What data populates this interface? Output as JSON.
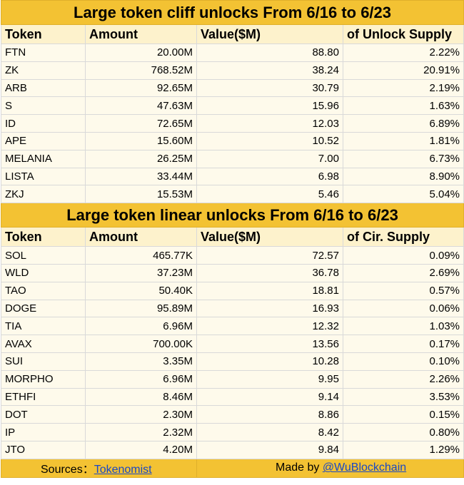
{
  "cliff": {
    "title": "Large token cliff unlocks From  6/16 to 6/23",
    "headers": [
      "Token",
      "Amount",
      "Value($M)",
      "of Unlock Supply"
    ],
    "rows": [
      [
        "FTN",
        "20.00M",
        "88.80",
        "2.22%"
      ],
      [
        "ZK",
        "768.52M",
        "38.24",
        "20.91%"
      ],
      [
        "ARB",
        "92.65M",
        "30.79",
        "2.19%"
      ],
      [
        "S",
        "47.63M",
        "15.96",
        "1.63%"
      ],
      [
        "ID",
        "72.65M",
        "12.03",
        "6.89%"
      ],
      [
        "APE",
        "15.60M",
        "10.52",
        "1.81%"
      ],
      [
        "MELANIA",
        "26.25M",
        "7.00",
        "6.73%"
      ],
      [
        "LISTA",
        "33.44M",
        "6.98",
        "8.90%"
      ],
      [
        "ZKJ",
        "15.53M",
        "5.46",
        "5.04%"
      ]
    ]
  },
  "linear": {
    "title": "Large token linear unlocks From     6/16 to 6/23",
    "headers": [
      "Token",
      "Amount",
      "Value($M)",
      "of Cir. Supply"
    ],
    "rows": [
      [
        "SOL",
        "465.77K",
        "72.57",
        "0.09%"
      ],
      [
        "WLD",
        "37.23M",
        "36.78",
        "2.69%"
      ],
      [
        "TAO",
        "50.40K",
        "18.81",
        "0.57%"
      ],
      [
        "DOGE",
        "95.89M",
        "16.93",
        "0.06%"
      ],
      [
        "TIA",
        "6.96M",
        "12.32",
        "1.03%"
      ],
      [
        "AVAX",
        "700.00K",
        "13.56",
        "0.17%"
      ],
      [
        "SUI",
        "3.35M",
        "10.28",
        "0.10%"
      ],
      [
        "MORPHO",
        "6.96M",
        "9.95",
        "2.26%"
      ],
      [
        "ETHFI",
        "8.46M",
        "9.14",
        "3.53%"
      ],
      [
        "DOT",
        "2.30M",
        "8.86",
        "0.15%"
      ],
      [
        "IP",
        "2.32M",
        "8.42",
        "0.80%"
      ],
      [
        "JTO",
        "4.20M",
        "9.84",
        "1.29%"
      ]
    ]
  },
  "footer": {
    "sources_label": "Sources：",
    "sources_link": "Tokenomist",
    "made_by_label": "Made by ",
    "made_by_link": "@WuBlockchain"
  }
}
